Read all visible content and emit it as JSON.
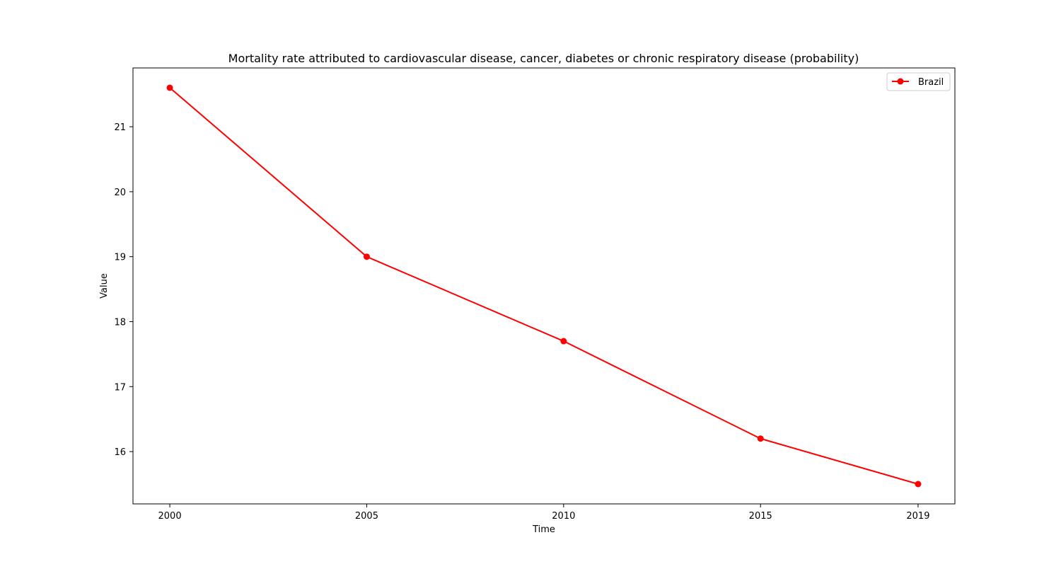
{
  "chart_data": {
    "type": "line",
    "title": "Mortality rate attributed to cardiovascular disease, cancer, diabetes or chronic respiratory disease (probability)",
    "xlabel": "Time",
    "ylabel": "Value",
    "x": [
      2000,
      2005,
      2010,
      2015,
      2019
    ],
    "x_tick_labels": [
      "2000",
      "2005",
      "2010",
      "2015",
      "2019"
    ],
    "y_ticks": [
      16,
      17,
      18,
      19,
      20,
      21
    ],
    "y_tick_labels": [
      "16",
      "17",
      "18",
      "19",
      "20",
      "21"
    ],
    "xlim": [
      1999.065,
      2019.935
    ],
    "ylim": [
      15.195,
      21.905
    ],
    "grid": false,
    "legend_position": "top-right",
    "series": [
      {
        "name": "Brazil",
        "color": "#ff0000",
        "marker": "circle",
        "values": [
          21.6,
          19.0,
          17.7,
          16.2,
          15.5
        ]
      }
    ]
  }
}
